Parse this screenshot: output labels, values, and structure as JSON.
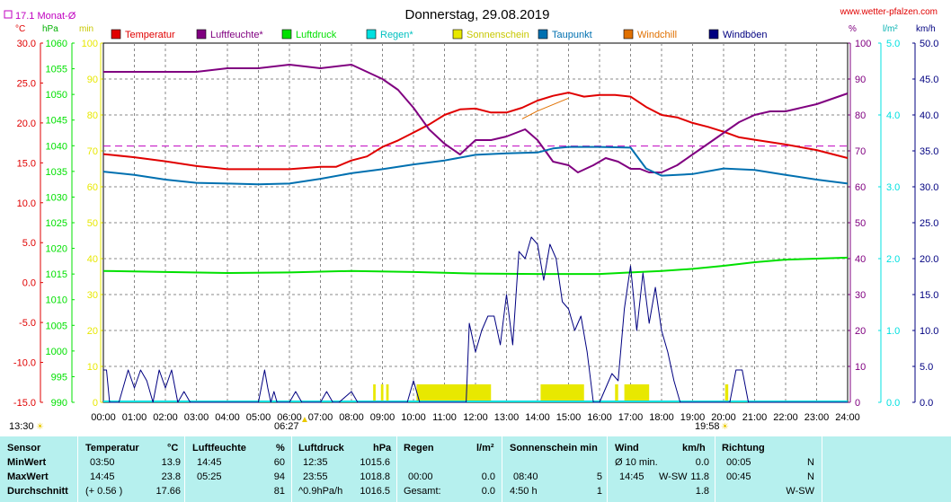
{
  "page": {
    "title": "Donnerstag, 29.08.2019",
    "url": "www.wetter-pfalzen.com",
    "monthly_avg_label": "17.1 Monat-Ø",
    "sunrise": "06:27",
    "sunset": "19:58",
    "time_left": "13:30"
  },
  "colors": {
    "temperature": "#e00000",
    "humidity": "#800080",
    "pressure": "#00e000",
    "rain": "#00e0e0",
    "sunshine": "#e8e800",
    "dewpoint": "#0070b0",
    "windchill": "#e07000",
    "gusts": "#000080",
    "table_bg": "#b6f0ee"
  },
  "chart_data": {
    "type": "line",
    "title": "Donnerstag, 29.08.2019",
    "x_ticks": [
      "00:00",
      "01:00",
      "02:00",
      "03:00",
      "04:00",
      "05:00",
      "06:00",
      "07:00",
      "08:00",
      "09:00",
      "10:00",
      "11:00",
      "12:00",
      "13:00",
      "14:00",
      "15:00",
      "16:00",
      "17:00",
      "18:00",
      "19:00",
      "20:00",
      "21:00",
      "22:00",
      "23:00",
      "24:00"
    ],
    "axes": {
      "temperature": {
        "unit": "°C",
        "range": [
          -15,
          30
        ],
        "ticks": [
          "30.0",
          "25.0",
          "20.0",
          "15.0",
          "10.0",
          "5.0",
          "0.0",
          "-5.0",
          "-10.0",
          "-15.0"
        ]
      },
      "pressure": {
        "unit": "hPa",
        "range": [
          990,
          1060
        ],
        "ticks": [
          "1060",
          "1055",
          "1050",
          "1045",
          "1040",
          "1035",
          "1030",
          "1025",
          "1020",
          "1015",
          "1010",
          "1005",
          "1000",
          "995",
          "990"
        ]
      },
      "sun_minutes": {
        "unit": "min",
        "range": [
          0,
          100
        ],
        "ticks": [
          "100",
          "90",
          "80",
          "70",
          "60",
          "50",
          "40",
          "30",
          "20",
          "10",
          "0"
        ]
      },
      "humidity": {
        "unit": "%",
        "range": [
          0,
          100
        ],
        "ticks": [
          "100",
          "90",
          "80",
          "70",
          "60",
          "50",
          "40",
          "30",
          "20",
          "10",
          "0"
        ]
      },
      "rain": {
        "unit": "l/m²",
        "range": [
          0,
          5
        ],
        "ticks": [
          "5.0",
          "4.0",
          "3.0",
          "2.0",
          "1.0",
          "0.0"
        ]
      },
      "wind": {
        "unit": "km/h",
        "range": [
          0,
          50
        ],
        "ticks": [
          "50.0",
          "45.0",
          "40.0",
          "35.0",
          "30.0",
          "25.0",
          "20.0",
          "15.0",
          "10.0",
          "5.0",
          "0.0"
        ]
      }
    },
    "legend": [
      "Temperatur",
      "Luftfeuchte*",
      "Luftdruck",
      "Regen*",
      "Sonnenschein",
      "Taupunkt",
      "Windchill",
      "Windböen"
    ],
    "monthly_avg_temp": 17.1,
    "series": [
      {
        "name": "Temperatur",
        "key": "temperature",
        "axis": "temperature",
        "x": [
          0,
          1,
          2,
          3,
          4,
          5,
          6,
          7,
          7.5,
          8,
          8.5,
          9,
          9.5,
          10,
          10.5,
          11,
          11.5,
          12,
          12.5,
          13,
          13.5,
          14,
          14.5,
          15,
          15.5,
          16,
          16.5,
          17,
          17.5,
          18,
          18.5,
          19,
          19.5,
          20,
          20.5,
          21,
          22,
          23,
          24
        ],
        "y": [
          16.1,
          15.7,
          15.2,
          14.6,
          14.2,
          14.2,
          14.2,
          14.5,
          14.5,
          15.3,
          15.8,
          17.0,
          17.8,
          18.8,
          19.8,
          21.0,
          21.7,
          21.8,
          21.3,
          21.3,
          21.9,
          22.8,
          23.4,
          23.8,
          23.3,
          23.5,
          23.5,
          23.3,
          22.0,
          21.0,
          20.7,
          20.0,
          19.5,
          18.9,
          18.2,
          17.9,
          17.3,
          16.6,
          15.6
        ]
      },
      {
        "name": "Luftfeuchte*",
        "key": "humidity",
        "axis": "humidity",
        "x": [
          0,
          1,
          2,
          3,
          4,
          5,
          6,
          7,
          8,
          8.5,
          9,
          9.5,
          10,
          10.5,
          11,
          11.5,
          12,
          12.5,
          13,
          13.3,
          13.6,
          14,
          14.5,
          15,
          15.3,
          15.8,
          16.2,
          16.6,
          17,
          17.3,
          17.6,
          18,
          18.5,
          19,
          19.5,
          20,
          20.5,
          21,
          21.5,
          22,
          23,
          24
        ],
        "y": [
          92,
          92,
          92,
          92,
          93,
          93,
          94,
          93,
          94,
          92,
          90,
          87,
          82,
          76,
          72,
          69,
          73,
          73,
          74,
          75,
          76,
          73,
          67,
          66,
          64,
          66,
          68,
          67,
          65,
          65,
          64,
          64,
          66,
          69,
          72,
          75,
          78,
          80,
          81,
          81,
          83,
          86
        ]
      },
      {
        "name": "Luftdruck",
        "key": "pressure",
        "axis": "pressure",
        "x": [
          0,
          2,
          4,
          6,
          8,
          10,
          12,
          14,
          15,
          16,
          17,
          18,
          19,
          20,
          21,
          22,
          23,
          24
        ],
        "y": [
          1015.6,
          1015.4,
          1015.2,
          1015.3,
          1015.6,
          1015.4,
          1015.1,
          1015.0,
          1015.0,
          1015.0,
          1015.3,
          1015.6,
          1016.0,
          1016.6,
          1017.3,
          1017.8,
          1018.0,
          1018.2
        ]
      },
      {
        "name": "Taupunkt",
        "key": "dewpoint",
        "axis": "temperature",
        "x": [
          0,
          1,
          2,
          3,
          4,
          5,
          6,
          7,
          8,
          9,
          10,
          11,
          12,
          13,
          14,
          14.5,
          15,
          16,
          17,
          17.5,
          18,
          19,
          20,
          21,
          22,
          23,
          24
        ],
        "y": [
          13.9,
          13.5,
          12.9,
          12.5,
          12.4,
          12.3,
          12.4,
          13.0,
          13.7,
          14.2,
          14.8,
          15.3,
          16.0,
          16.2,
          16.3,
          16.8,
          17.0,
          17.0,
          16.9,
          14.3,
          13.4,
          13.6,
          14.3,
          14.1,
          13.5,
          12.9,
          12.4
        ]
      },
      {
        "name": "Windchill",
        "key": "windchill",
        "axis": "temperature",
        "x": [
          13.5,
          14,
          14.5,
          15
        ],
        "y": [
          20.5,
          21.5,
          22.3,
          23.1
        ]
      },
      {
        "name": "Windböen",
        "key": "gusts",
        "axis": "wind",
        "x": [
          0,
          0.1,
          0.2,
          0.5,
          0.8,
          1,
          1.2,
          1.4,
          1.6,
          1.8,
          2,
          2.2,
          2.4,
          2.6,
          2.8,
          3,
          5,
          5.2,
          5.3,
          5.4,
          5.5,
          5.6,
          5.8,
          6,
          6.2,
          6.4,
          6.6,
          7,
          7.2,
          7.4,
          7.6,
          8,
          8.2,
          8.4,
          9,
          9.8,
          10,
          10.2,
          11,
          11.5,
          11.7,
          11.8,
          12,
          12.2,
          12.4,
          12.6,
          12.8,
          13,
          13.2,
          13.4,
          13.6,
          13.8,
          14,
          14.2,
          14.4,
          14.6,
          14.8,
          15,
          15.2,
          15.4,
          15.6,
          15.8,
          16,
          16.2,
          16.4,
          16.6,
          16.8,
          17,
          17.2,
          17.4,
          17.6,
          17.8,
          18,
          18.2,
          18.4,
          18.6,
          18.8,
          19,
          19.2,
          19.4,
          19.6,
          19.8,
          20,
          20.2,
          20.4,
          20.6,
          20.8,
          21,
          24
        ],
        "y": [
          4.5,
          4.5,
          0,
          0,
          4.5,
          2,
          4.5,
          3,
          0,
          4.5,
          2,
          4.5,
          0,
          1.5,
          0,
          0,
          0,
          4.5,
          2,
          0,
          1.5,
          0,
          0,
          0,
          1.5,
          0,
          0,
          0,
          1.5,
          0,
          0,
          1.5,
          0,
          0,
          0,
          0,
          3,
          0,
          0,
          0,
          0,
          11,
          7,
          10,
          12,
          12,
          8,
          15,
          8,
          21,
          20,
          23,
          22,
          17,
          22,
          20,
          14,
          13,
          10,
          12,
          7,
          0,
          0,
          2,
          4,
          3,
          13,
          19,
          10,
          18,
          11,
          16,
          10,
          7,
          3,
          0,
          0,
          0,
          0,
          0,
          0,
          0,
          0,
          0,
          4.5,
          4.5,
          0,
          0,
          0
        ]
      }
    ],
    "sunshine_bars": {
      "axis": "sun_minutes",
      "value": 5,
      "intervals": [
        [
          8.7,
          8.78
        ],
        [
          8.95,
          9.03
        ],
        [
          9.12,
          9.2
        ],
        [
          10.1,
          12.5
        ],
        [
          14.1,
          15.5
        ],
        [
          16.5,
          16.6
        ],
        [
          16.8,
          17.6
        ],
        [
          20.05,
          20.15
        ]
      ]
    }
  },
  "table": {
    "headers": [
      "Sensor",
      "Temperatur",
      "°C",
      "Luftfeuchte",
      "%",
      "Luftdruck",
      "hPa",
      "Regen",
      "l/m²",
      "Sonnenschein min",
      "Wind",
      "km/h",
      "Richtung"
    ],
    "row_labels": [
      "MinWert",
      "MaxWert",
      "Durchschnitt"
    ],
    "temperatur": [
      [
        "03:50",
        "13.9"
      ],
      [
        "14:45",
        "23.8"
      ],
      [
        "(+ 0.56 )",
        "17.66"
      ]
    ],
    "luftfeuchte": [
      [
        "14:45",
        "60"
      ],
      [
        "05:25",
        "94"
      ],
      [
        "",
        "81"
      ]
    ],
    "luftdruck": [
      [
        "12:35",
        "1015.6"
      ],
      [
        "23:55",
        "1018.8"
      ],
      [
        "^0.9hPa/h",
        "1016.5"
      ]
    ],
    "regen": [
      [
        "",
        ""
      ],
      [
        "00:00",
        "0.0"
      ],
      [
        "Gesamt:",
        "0.0"
      ]
    ],
    "sonnenschein": [
      [
        "",
        ""
      ],
      [
        "08:40",
        "5"
      ],
      [
        "4:50 h",
        "1"
      ]
    ],
    "wind": [
      [
        "Ø 10 min.",
        "",
        "0.0"
      ],
      [
        "14:45",
        "W-SW",
        "11.8"
      ],
      [
        "",
        "",
        "1.8"
      ]
    ],
    "richtung": [
      [
        "00:05",
        "N"
      ],
      [
        "00:45",
        "N"
      ],
      [
        "",
        "W-SW"
      ]
    ]
  }
}
